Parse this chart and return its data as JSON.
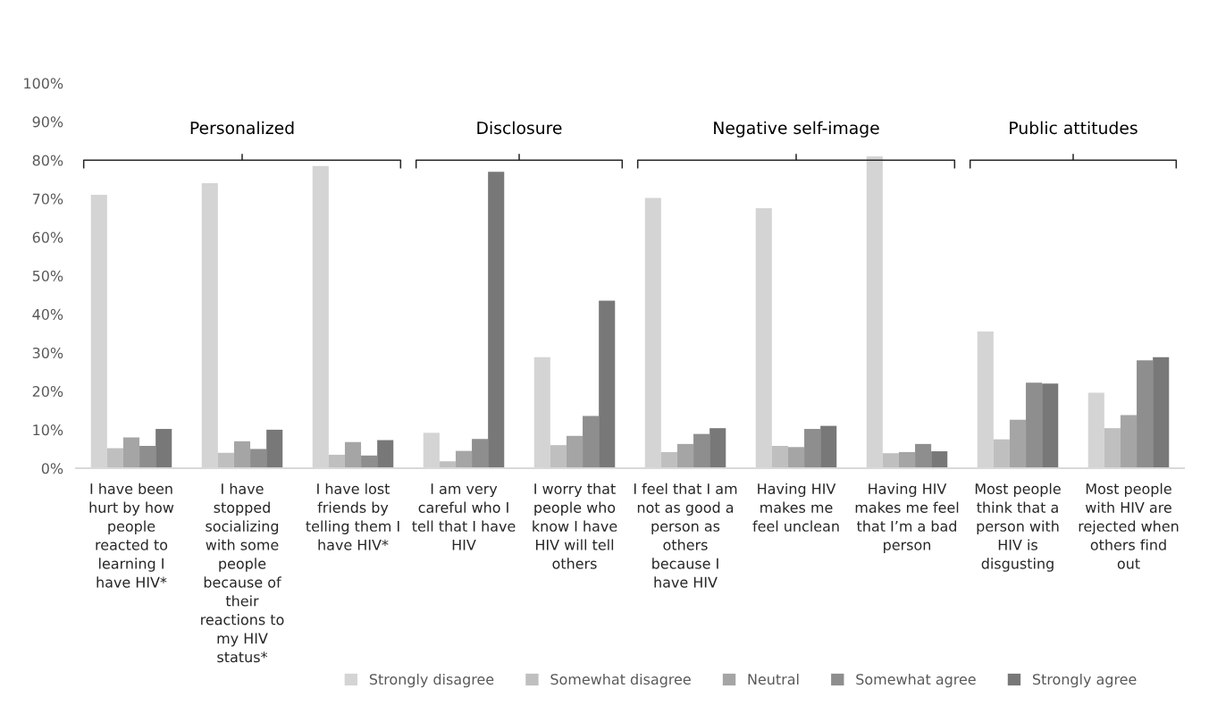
{
  "chart_data": {
    "type": "bar",
    "categories": [
      "I have been\nhurt by how\npeople\nreacted to\nlearning I\nhave HIV*",
      "I have\nstopped\nsocializing\nwith some\npeople\nbecause of\ntheir\nreactions to\nmy HIV\nstatus*",
      "I have lost\nfriends by\ntelling them I\nhave HIV*",
      "I am very\ncareful who I\ntell that I have\nHIV",
      "I worry that\npeople who\nknow I have\nHIV will tell\nothers",
      "I feel that I am\nnot as good a\nperson as\nothers\nbecause I\nhave HIV",
      "Having HIV\nmakes me\nfeel unclean",
      "Having HIV\nmakes me feel\nthat I’m a bad\nperson",
      "Most people\nthink that a\nperson with\nHIV is\ndisgusting",
      "Most people\nwith HIV are\nrejected when\nothers find\nout"
    ],
    "series": [
      {
        "name": "Strongly disagree",
        "color": "#d4d4d4",
        "values": [
          71,
          74,
          78.5,
          9.2,
          28.8,
          70.2,
          67.5,
          81,
          35.5,
          19.6
        ]
      },
      {
        "name": "Somewhat disagree",
        "color": "#bfbfbf",
        "values": [
          5.2,
          4,
          3.5,
          1.8,
          6,
          4.2,
          5.8,
          3.9,
          7.5,
          10.4
        ]
      },
      {
        "name": "Neutral",
        "color": "#a5a5a5",
        "values": [
          8,
          7,
          6.8,
          4.5,
          8.4,
          6.3,
          5.5,
          4.2,
          12.6,
          13.8
        ]
      },
      {
        "name": "Somewhat agree",
        "color": "#8e8e8e",
        "values": [
          5.8,
          5,
          3.3,
          7.6,
          13.6,
          8.9,
          10.2,
          6.3,
          22.2,
          28
        ]
      },
      {
        "name": "Strongly agree",
        "color": "#787878",
        "values": [
          10.2,
          10,
          7.3,
          77,
          43.5,
          10.4,
          11,
          4.4,
          22,
          28.8
        ]
      }
    ],
    "ylim": [
      0,
      100
    ],
    "yticks": [
      {
        "value": 0,
        "label": "0%"
      },
      {
        "value": 10,
        "label": "10%"
      },
      {
        "value": 20,
        "label": "20%"
      },
      {
        "value": 30,
        "label": "30%"
      },
      {
        "value": 40,
        "label": "40%"
      },
      {
        "value": 50,
        "label": "50%"
      },
      {
        "value": 60,
        "label": "60%"
      },
      {
        "value": 70,
        "label": "70%"
      },
      {
        "value": 80,
        "label": "80%"
      },
      {
        "value": 90,
        "label": "90%"
      },
      {
        "value": 100,
        "label": "100%"
      }
    ],
    "annotations": [
      "Personalized",
      "Disclosure",
      "Negative self-image",
      "Public attitudes"
    ],
    "grid": false,
    "legend": "bottom"
  }
}
